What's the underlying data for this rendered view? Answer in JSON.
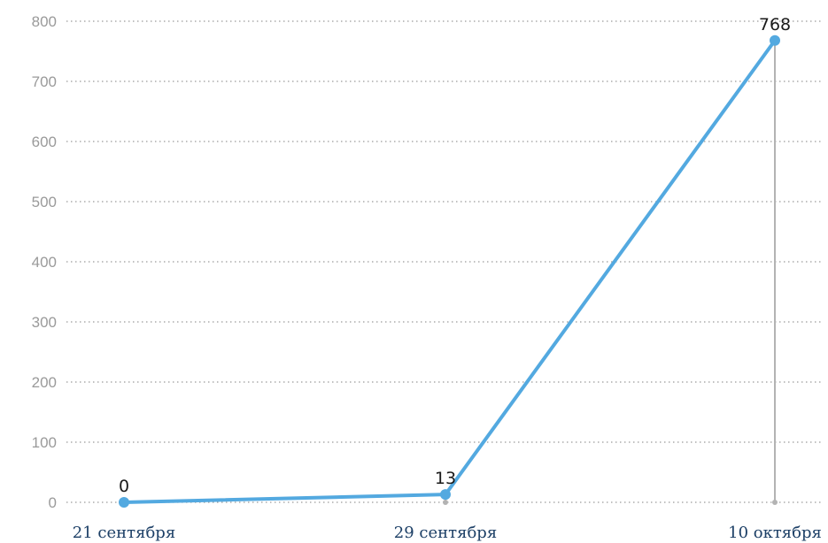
{
  "chart_data": {
    "type": "line",
    "categories": [
      "21 сентября",
      "29 сентября",
      "10 октября"
    ],
    "values": [
      0,
      13,
      768
    ],
    "data_labels": [
      "0",
      "13",
      "768"
    ],
    "ylim": [
      0,
      800
    ],
    "yticks": [
      "0",
      "100",
      "200",
      "300",
      "400",
      "500",
      "600",
      "700",
      "800"
    ],
    "grid": true,
    "line_color": "#53a9e0",
    "axis_text_color": "#9a9a9a",
    "x_label_color": "#1c3f66"
  }
}
